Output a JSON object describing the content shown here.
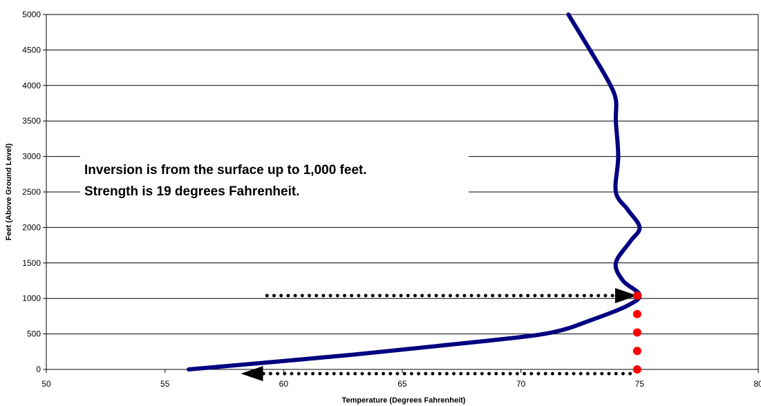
{
  "chart_data": {
    "type": "line",
    "title": "",
    "xlabel": "Temperature (Degrees Fahrenheit)",
    "ylabel": "Feet (Above Ground Level)",
    "xlim": [
      50,
      80
    ],
    "ylim": [
      0,
      5000
    ],
    "x_ticks": [
      "50",
      "55",
      "60",
      "65",
      "70",
      "75",
      "80"
    ],
    "y_ticks": [
      "0",
      "500",
      "1000",
      "1500",
      "2000",
      "2500",
      "3000",
      "3500",
      "4000",
      "4500",
      "5000"
    ],
    "grid": "horizontal",
    "series": [
      {
        "color": "#000080",
        "points": [
          {
            "x": 56.0,
            "y": 0
          },
          {
            "x": 63.0,
            "y": 210
          },
          {
            "x": 68.5,
            "y": 400
          },
          {
            "x": 71.3,
            "y": 520
          },
          {
            "x": 73.0,
            "y": 700
          },
          {
            "x": 74.5,
            "y": 900
          },
          {
            "x": 75.0,
            "y": 1050
          },
          {
            "x": 74.3,
            "y": 1250
          },
          {
            "x": 74.0,
            "y": 1500
          },
          {
            "x": 74.6,
            "y": 1800
          },
          {
            "x": 75.0,
            "y": 2000
          },
          {
            "x": 74.5,
            "y": 2250
          },
          {
            "x": 74.0,
            "y": 2500
          },
          {
            "x": 74.1,
            "y": 3000
          },
          {
            "x": 74.0,
            "y": 3500
          },
          {
            "x": 74.0,
            "y": 3800
          },
          {
            "x": 73.7,
            "y": 4050
          },
          {
            "x": 73.0,
            "y": 4450
          },
          {
            "x": 72.0,
            "y": 5000
          }
        ]
      }
    ],
    "red_markers": [
      {
        "x": 74.9,
        "y": 0
      },
      {
        "x": 74.9,
        "y": 260
      },
      {
        "x": 74.9,
        "y": 520
      },
      {
        "x": 74.9,
        "y": 780
      },
      {
        "x": 74.9,
        "y": 1040
      }
    ],
    "arrows": [
      {
        "from": {
          "x": 59.3,
          "y": 1040
        },
        "to": {
          "x": 74.9,
          "y": 1040
        },
        "style": "dotted",
        "color": "#000000"
      },
      {
        "from": {
          "x": 74.6,
          "y": -60
        },
        "to": {
          "x": 58.2,
          "y": -60
        },
        "style": "dotted",
        "color": "#000000"
      }
    ],
    "annotation": {
      "lines": [
        "Inversion is from the surface up to 1,000 feet.",
        "Strength is 19 degrees Fahrenheit."
      ]
    }
  }
}
